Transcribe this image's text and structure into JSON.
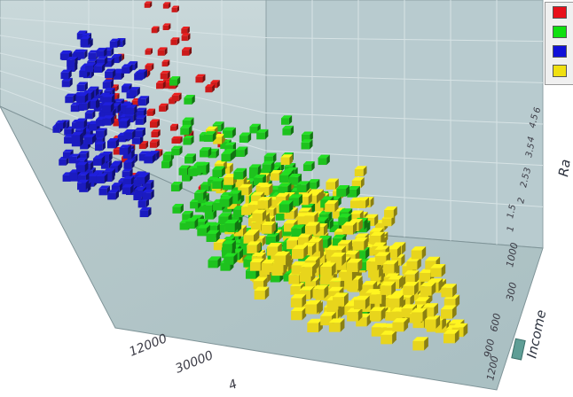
{
  "chart_data": {
    "type": "scatter",
    "projection": "3d",
    "xlabel": "Income",
    "ylabel": "Ra",
    "zlabel": "",
    "x_ticks": [
      "1000",
      "300",
      "600",
      "900",
      "1200"
    ],
    "y_ticks": [
      "1",
      "1.5",
      "2",
      "2.5",
      "3",
      "3.5",
      "4",
      "4.5",
      "6"
    ],
    "z_ticks": [
      "12000",
      "30000",
      "4"
    ],
    "x_marker": "Income",
    "legend_position": "top-right",
    "grid": true,
    "series": [
      {
        "color": "#cc1a1a",
        "clusters": [
          {
            "u": 0.5,
            "v": 0.87,
            "spread": 0.35,
            "count": 60
          }
        ]
      },
      {
        "color": "#1b1bc0",
        "clusters": [
          {
            "u": 0.18,
            "v": 0.62,
            "spread": 0.25,
            "count": 170
          }
        ]
      },
      {
        "color": "#1ec21e",
        "clusters": [
          {
            "u": 0.6,
            "v": 0.45,
            "spread": 0.45,
            "count": 230
          }
        ]
      },
      {
        "color": "#e8d51c",
        "clusters": [
          {
            "u": 0.7,
            "v": 0.3,
            "spread": 0.5,
            "count": 320
          }
        ]
      }
    ],
    "legend": [
      {
        "color": "#e8101a",
        "label": ""
      },
      {
        "color": "#10e010",
        "label": ""
      },
      {
        "color": "#1010d8",
        "label": ""
      },
      {
        "color": "#f0e010",
        "label": ""
      }
    ]
  }
}
